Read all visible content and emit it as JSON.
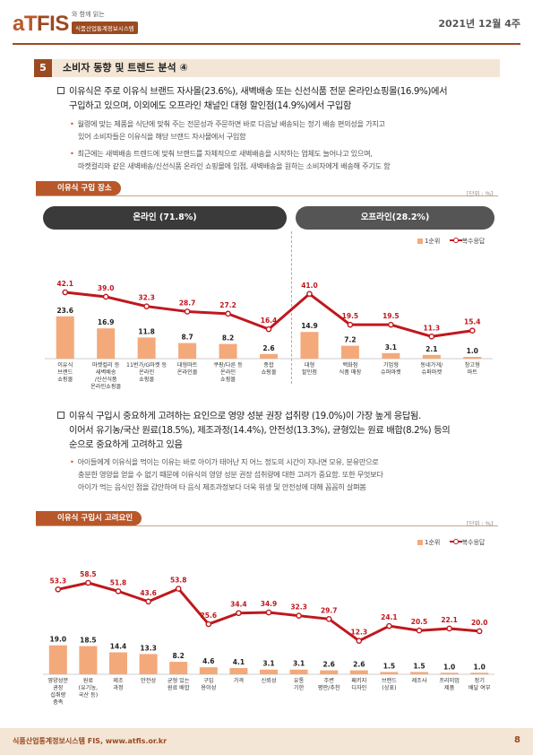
{
  "header": {
    "logo_prefix": "aT",
    "logo_main": "FIS",
    "logo_tag": "와 함께 읽는",
    "logo_sub": "식품산업통계정보시스템",
    "date": "2021년 12월 4주"
  },
  "section": {
    "number": "5",
    "title": "소비자 동향 및 트렌드 분석 ④"
  },
  "para1": {
    "line1": "이유식은 주로 이유식 브랜드 자사몰(23.6%), 새벽배송 또는 신선식품 전문 온라인쇼핑몰(16.9%)에서",
    "line2": "구입하고 있으며, 이외에도 오프라인 채널인 대형 할인점(14.9%)에서 구입함"
  },
  "bullets1": [
    {
      "line1": "월령에 맞는 제품을 식단에 맞춰 주는 전문성과 주문하면 바로 다음날 배송되는 정기 배송 편의성을 가지고",
      "line2": "있어 소비자들은 이유식을 해당 브랜드 자사몰에서 구입함"
    },
    {
      "line1": "최근에는 새벽배송 트렌드에 맞춰 브랜드를 자체적으로 새벽배송을 시작하는 업체도 늘어나고 있으며,",
      "line2": "마켓컬리와 같은 새벽배송/신선식품 온라인 쇼핑몰에 입점, 새벽배송을 원하는 소비자에게 배송해 주기도 함"
    }
  ],
  "chart1_head": {
    "title": "이유식 구입 장소",
    "unit": "[단위 : %]",
    "online": "온라인 (71.8%)",
    "offline": "오프라인(28.2%)"
  },
  "para2": {
    "line1": "이유식 구입시 중요하게 고려하는 요인으로 영양 성분 권장 섭취량 (19.0%)이 가장 높게 응답됨.",
    "line2": "이어서 유기농/국산 원료(18.5%), 제조과정(14.4%), 안전성(13.3%), 균형있는 원료 배합(8.2%) 등의",
    "line3": "순으로 중요하게 고려하고 있음"
  },
  "bullets2": [
    {
      "line1": "아이들에게 이유식을 먹이는 이유는 바로 아이가 태어난 지 어느 정도의 시간이 지나면 모유, 분유만으로",
      "line2": "충분한 영양을 얻을 수 없기 때문에 이유식의 영양 성분 권장 섭취량에 대한 고려가 중요함. 또한 무엇보다",
      "line3": "아이가 먹는 음식인 점을 감안하여 타 음식 제조과정보다 더욱 위생 및 안전성에 대해 꼼꼼히 살펴봄"
    }
  ],
  "chart2_head": {
    "title": "이유식 구입시 고려요인",
    "unit": "[단위 : %]"
  },
  "colors": {
    "bar": "#f4a97a",
    "line": "#c0171d",
    "brand": "#9b4a21"
  },
  "chart_data": [
    {
      "type": "bar",
      "title": "이유식 구입 장소",
      "categories": [
        [
          "이유식",
          "브랜드",
          "쇼핑몰"
        ],
        [
          "마켓컬리 등",
          "새벽배송",
          "/신선식품",
          "온라인쇼핑몰"
        ],
        [
          "11번가/G마켓 등",
          "온라인",
          "쇼핑몰"
        ],
        [
          "대형마트",
          "온라인몰"
        ],
        [
          "쿠팡/다른 등",
          "온라인",
          "쇼핑몰"
        ],
        [
          "종합",
          "쇼핑몰"
        ],
        [
          "대형",
          "할인점"
        ],
        [
          "백화점",
          "식품 매장"
        ],
        [
          "기업형",
          "슈퍼마켓"
        ],
        [
          "동네가게/",
          "슈퍼마켓"
        ],
        [
          "창고형",
          "마트"
        ]
      ],
      "series": [
        {
          "name": "1순위",
          "kind": "bar",
          "values": [
            23.6,
            16.9,
            11.8,
            8.7,
            8.2,
            2.6,
            14.9,
            7.2,
            3.1,
            2.1,
            1.0
          ]
        },
        {
          "name": "복수응답",
          "kind": "line",
          "values": [
            42.1,
            39.0,
            32.3,
            28.7,
            27.2,
            16.4,
            41.0,
            19.5,
            19.5,
            11.3,
            15.4
          ]
        }
      ],
      "legend": [
        "1순위",
        "복수응답"
      ]
    },
    {
      "type": "bar",
      "title": "이유식 구입시 고려요인",
      "categories": [
        [
          "영양성분",
          "권장",
          "섭취량",
          "충족"
        ],
        [
          "원료",
          "(유기농,",
          "국산 등)"
        ],
        [
          "제조",
          "과정"
        ],
        [
          "안전성"
        ],
        [
          "균형 있는",
          "원료 배합"
        ],
        [
          "구입",
          "용이성"
        ],
        [
          "가격"
        ],
        [
          "신뢰성"
        ],
        [
          "유통",
          "기한"
        ],
        [
          "주변",
          "평판/추천"
        ],
        [
          "패키지",
          "디자인"
        ],
        [
          "브랜드",
          "(상표)"
        ],
        [
          "제조사"
        ],
        [
          "프리미엄",
          "제품"
        ],
        [
          "정기",
          "배달 여부"
        ]
      ],
      "series": [
        {
          "name": "1순위",
          "kind": "bar",
          "values": [
            19.0,
            18.5,
            14.4,
            13.3,
            8.2,
            4.6,
            4.1,
            3.1,
            3.1,
            2.6,
            2.6,
            1.5,
            1.5,
            1.0,
            1.0
          ]
        },
        {
          "name": "복수응답",
          "kind": "line",
          "values": [
            53.3,
            58.5,
            51.8,
            43.6,
            53.8,
            25.6,
            34.4,
            34.9,
            32.3,
            29.7,
            12.3,
            24.1,
            20.5,
            22.1,
            20.0
          ]
        }
      ],
      "legend": [
        "1순위",
        "복수응답"
      ]
    }
  ],
  "footer": {
    "text": "식품산업통계정보시스템 FIS, www.atfis.or.kr",
    "page": "8"
  }
}
